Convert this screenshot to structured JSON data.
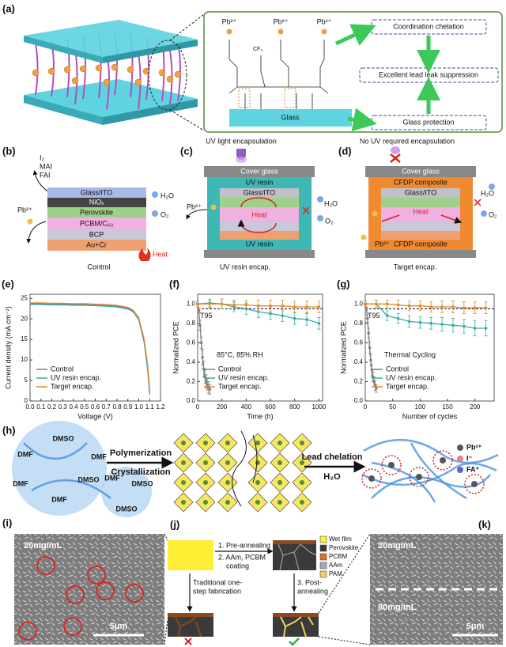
{
  "section_titles": [
    "UV light encapsulation",
    "No UV required encapsulation"
  ],
  "panel_a": {
    "label": "(a)",
    "ions": [
      "Pb²⁺",
      "Pb²⁺",
      "Pb²⁺"
    ],
    "cf3": "CF₃",
    "substrate": "Glass",
    "outcomes": [
      "Coordination chelation",
      "Excellent lead leak suppression",
      "Glass protection"
    ]
  },
  "panel_b": {
    "label": "(b)",
    "volatiles": [
      "I₂",
      "MAI",
      "FAI"
    ],
    "ion": "Pb²⁺",
    "layers": [
      "Glass/ITO",
      "NiOₓ",
      "Perovskite",
      "PCBM/C₆₀",
      "BCP",
      "Au+Cr"
    ],
    "water": "H₂O",
    "oxygen": "O₂",
    "heat": "Heat",
    "caption": "Control"
  },
  "panel_c": {
    "label": "(c)",
    "cover": "Cover glass",
    "top": "UV resin",
    "inner": "Glass/ITO",
    "bottom": "UV resin",
    "water": "H₂O",
    "oxygen": "O₂",
    "heat": "Heat",
    "ion": "Pb²⁺",
    "caption": "UV resin encap."
  },
  "panel_d": {
    "label": "(d)",
    "cover": "Cover glass",
    "top": "CFDP composite",
    "inner": "Glass/ITO",
    "bottom": "CFDP composite",
    "water": "H₂O",
    "oxygen": "O₂",
    "heat": "Heat",
    "ion": "Pb²⁺",
    "caption": "Target encap."
  },
  "panel_h": {
    "label": "(h)",
    "solvents": [
      "DMSO",
      "DMF",
      "DMF",
      "DMF",
      "DMSO",
      "DMF",
      "DMF",
      "DMSO",
      "DMSO"
    ],
    "steps": [
      "Polymerization",
      "Crystallization"
    ],
    "chelation": "Lead chelation",
    "water": "H₂O",
    "legend": [
      "Pb²⁺",
      "I⁻",
      "FA⁺"
    ]
  },
  "panel_i": {
    "label": "(i)",
    "concentration": "20mg/mL",
    "scale": "5μm"
  },
  "panel_j": {
    "label": "(j)",
    "step1": "1. Pre-annealing",
    "step2": [
      "2. AAm, PCBM",
      "coating"
    ],
    "traditional": [
      "Traditional one-",
      "step fabrication"
    ],
    "step3": [
      "3. Post-",
      "annealing"
    ],
    "legend": [
      {
        "name": "Wet film",
        "color": "#ffee33"
      },
      {
        "name": "Perovskite",
        "color": "#3a3a3a"
      },
      {
        "name": "PCBM",
        "color": "#e0701e"
      },
      {
        "name": "AAm",
        "color": "#a8a8a8"
      },
      {
        "name": "PAM",
        "color": "#f0d060"
      }
    ]
  },
  "panel_k": {
    "label": "(k)",
    "concentrations": [
      "20mg/mL",
      "80mg/mL"
    ],
    "scale": "5μm"
  },
  "chart_data": [
    {
      "type": "line",
      "label": "(e)",
      "xlabel": "Voltage (V)",
      "ylabel": "Current density (mA cm⁻²)",
      "legend": "lower left",
      "x": [
        0,
        0.1,
        0.2,
        0.3,
        0.4,
        0.5,
        0.6,
        0.7,
        0.8,
        0.9,
        0.95,
        1.0,
        1.05,
        1.08,
        1.1
      ],
      "xlim": [
        0,
        1.2
      ],
      "ylim": [
        0,
        26
      ],
      "xticks": [
        {
          "value": 0,
          "label": "0.0"
        },
        {
          "value": 0.1,
          "label": "0.1"
        },
        {
          "value": 0.2,
          "label": "0.2"
        },
        {
          "value": 0.3,
          "label": "0.3"
        },
        {
          "value": 0.4,
          "label": "0.4"
        },
        {
          "value": 0.5,
          "label": "0.5"
        },
        {
          "value": 0.6,
          "label": "0.6"
        },
        {
          "value": 0.7,
          "label": "0.7"
        },
        {
          "value": 0.8,
          "label": "0.8"
        },
        {
          "value": 0.9,
          "label": "0.9"
        },
        {
          "value": 1.0,
          "label": "1.0"
        },
        {
          "value": 1.1,
          "label": "1.1"
        },
        {
          "value": 1.2,
          "label": "1.2"
        }
      ],
      "yticks": [
        0,
        5,
        10,
        15,
        20,
        25
      ],
      "series": [
        {
          "name": "Control",
          "color": "#808080",
          "values": [
            23.7,
            23.7,
            23.6,
            23.6,
            23.5,
            23.5,
            23.4,
            23.3,
            23.1,
            22.6,
            21.9,
            20.0,
            14.5,
            8.5,
            2.0
          ]
        },
        {
          "name": "UV resin encap.",
          "color": "#3aa8a8",
          "values": [
            23.5,
            23.5,
            23.4,
            23.4,
            23.3,
            23.3,
            23.2,
            23.1,
            22.9,
            22.4,
            21.7,
            19.8,
            14.2,
            8.0,
            1.5
          ]
        },
        {
          "name": "Target encap.",
          "color": "#e3892b",
          "values": [
            23.9,
            23.9,
            23.8,
            23.8,
            23.7,
            23.7,
            23.6,
            23.5,
            23.3,
            22.8,
            22.1,
            20.3,
            15.0,
            9.2,
            2.8
          ]
        }
      ]
    },
    {
      "type": "line",
      "label": "(f)",
      "xlabel": "Time (h)",
      "ylabel": "Normalized PCE",
      "legend": "lower left",
      "annotation": "85°C, 85% RH",
      "reference_line": 0.95,
      "reference_label": "T95",
      "xlim": [
        0,
        1030
      ],
      "ylim": [
        0,
        1.1
      ],
      "xticks": [
        0,
        200,
        400,
        600,
        800,
        1000
      ],
      "yticks": [
        {
          "value": 0,
          "label": "0.0"
        },
        {
          "value": 0.2,
          "label": "0.2"
        },
        {
          "value": 0.4,
          "label": "0.4"
        },
        {
          "value": 0.6,
          "label": "0.6"
        },
        {
          "value": 0.8,
          "label": "0.8"
        },
        {
          "value": 1.0,
          "label": "1.0"
        }
      ],
      "series": [
        {
          "name": "Control",
          "color": "#808080",
          "x": [
            0,
            10,
            20,
            30,
            40,
            50,
            60,
            70,
            80,
            90,
            100
          ],
          "values": [
            1.0,
            0.93,
            0.78,
            0.6,
            0.45,
            0.33,
            0.25,
            0.2,
            0.17,
            0.14,
            0.12
          ],
          "errors": [
            0.01,
            0.02,
            0.05,
            0.06,
            0.08,
            0.08,
            0.07,
            0.07,
            0.06,
            0.06,
            0.05
          ]
        },
        {
          "name": "UV resin encap.",
          "color": "#3aa8a8",
          "x": [
            0,
            100,
            200,
            300,
            400,
            500,
            600,
            700,
            800,
            900,
            1000
          ],
          "values": [
            1.0,
            1.01,
            1.0,
            0.97,
            0.95,
            0.92,
            0.9,
            0.88,
            0.85,
            0.84,
            0.8
          ],
          "errors": [
            0.03,
            0.04,
            0.05,
            0.05,
            0.06,
            0.06,
            0.06,
            0.06,
            0.06,
            0.06,
            0.06
          ]
        },
        {
          "name": "Target encap.",
          "color": "#e3892b",
          "x": [
            0,
            100,
            200,
            300,
            400,
            500,
            600,
            700,
            800,
            900,
            1000
          ],
          "values": [
            1.0,
            1.0,
            1.0,
            0.99,
            0.99,
            0.98,
            0.98,
            0.98,
            0.97,
            0.97,
            0.97
          ],
          "errors": [
            0.03,
            0.04,
            0.05,
            0.05,
            0.05,
            0.06,
            0.06,
            0.06,
            0.06,
            0.06,
            0.06
          ]
        }
      ]
    },
    {
      "type": "line",
      "label": "(g)",
      "xlabel": "Number of cycles",
      "ylabel": "Normalized PCE",
      "legend": "lower left",
      "annotation": "Thermal Cycling",
      "reference_line": 0.95,
      "reference_label": "T95",
      "xlim": [
        0,
        235
      ],
      "ylim": [
        0,
        1.1
      ],
      "xticks": [
        0,
        50,
        100,
        150,
        200
      ],
      "yticks": [
        {
          "value": 0,
          "label": "0.0"
        },
        {
          "value": 0.2,
          "label": "0.2"
        },
        {
          "value": 0.4,
          "label": "0.4"
        },
        {
          "value": 0.6,
          "label": "0.6"
        },
        {
          "value": 0.8,
          "label": "0.8"
        },
        {
          "value": 1.0,
          "label": "1.0"
        }
      ],
      "series": [
        {
          "name": "Control",
          "color": "#808080",
          "x": [
            0,
            2,
            4,
            6,
            8,
            10,
            12,
            14,
            16,
            18,
            20
          ],
          "values": [
            1.0,
            0.95,
            0.85,
            0.7,
            0.55,
            0.42,
            0.32,
            0.25,
            0.2,
            0.16,
            0.13
          ],
          "errors": [
            0.01,
            0.02,
            0.04,
            0.05,
            0.06,
            0.06,
            0.06,
            0.05,
            0.05,
            0.05,
            0.04
          ]
        },
        {
          "name": "UV resin encap.",
          "color": "#3aa8a8",
          "x": [
            0,
            20,
            40,
            60,
            80,
            100,
            120,
            140,
            160,
            180,
            200,
            220
          ],
          "values": [
            1.0,
            1.0,
            0.88,
            0.85,
            0.82,
            0.81,
            0.8,
            0.79,
            0.78,
            0.77,
            0.75,
            0.75
          ],
          "errors": [
            0.03,
            0.04,
            0.05,
            0.05,
            0.06,
            0.06,
            0.06,
            0.07,
            0.07,
            0.07,
            0.08,
            0.08
          ]
        },
        {
          "name": "Target encap.",
          "color": "#e3892b",
          "x": [
            0,
            20,
            40,
            60,
            80,
            100,
            120,
            140,
            160,
            180,
            200,
            220
          ],
          "values": [
            1.0,
            1.0,
            1.0,
            0.99,
            0.98,
            0.98,
            0.97,
            0.97,
            0.97,
            0.96,
            0.96,
            0.96
          ],
          "errors": [
            0.03,
            0.04,
            0.04,
            0.05,
            0.05,
            0.05,
            0.05,
            0.06,
            0.06,
            0.06,
            0.06,
            0.06
          ]
        }
      ]
    }
  ]
}
